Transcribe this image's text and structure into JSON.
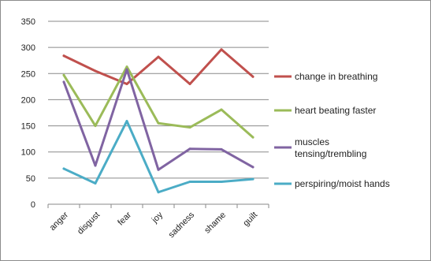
{
  "chart_data": {
    "type": "line",
    "categories": [
      "anger",
      "disgust",
      "fear",
      "joy",
      "sadness",
      "shame",
      "guilt"
    ],
    "ylim": [
      0,
      350
    ],
    "yticks": [
      0,
      50,
      100,
      150,
      200,
      250,
      300,
      350
    ],
    "grid": "horizontal major gridlines",
    "legend_position": "right",
    "series": [
      {
        "name": "change in breathing",
        "color": "#c0504d",
        "values": [
          284,
          255,
          230,
          282,
          230,
          296,
          244
        ]
      },
      {
        "name": "heart beating faster",
        "color": "#9bbb59",
        "values": [
          247,
          150,
          263,
          155,
          147,
          181,
          128
        ]
      },
      {
        "name": "muscles tensing/trembling",
        "legend_lines": [
          "muscles",
          "tensing/trembling"
        ],
        "color": "#8064a2",
        "values": [
          234,
          74,
          258,
          66,
          106,
          105,
          71
        ]
      },
      {
        "name": "perspiring/moist hands",
        "color": "#4bacc6",
        "values": [
          68,
          40,
          159,
          23,
          43,
          43,
          48
        ]
      }
    ]
  }
}
